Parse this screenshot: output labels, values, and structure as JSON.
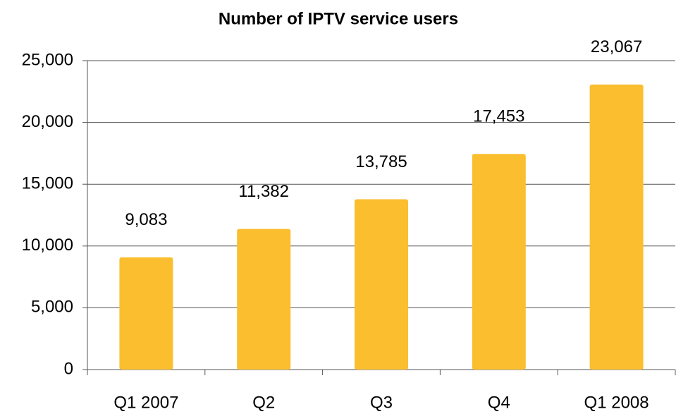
{
  "chart_data": {
    "type": "bar",
    "title": "Number of IPTV service users",
    "categories": [
      "Q1 2007",
      "Q2",
      "Q3",
      "Q4",
      "Q1 2008"
    ],
    "values": [
      9083,
      11382,
      13785,
      17453,
      23067
    ],
    "value_labels": [
      "9,083",
      "11,382",
      "13,785",
      "17,453",
      "23,067"
    ],
    "color": "#fbbe2e",
    "ylim": [
      0,
      25000
    ],
    "yticks": [
      0,
      {
        "value": 5000,
        "label": "5,000"
      },
      {
        "value": 10000,
        "label": "10,000"
      },
      {
        "value": 15000,
        "label": "15,000"
      },
      {
        "value": 20000,
        "label": "20,000"
      },
      {
        "value": 25000,
        "label": "25,000"
      }
    ],
    "grid": true
  }
}
